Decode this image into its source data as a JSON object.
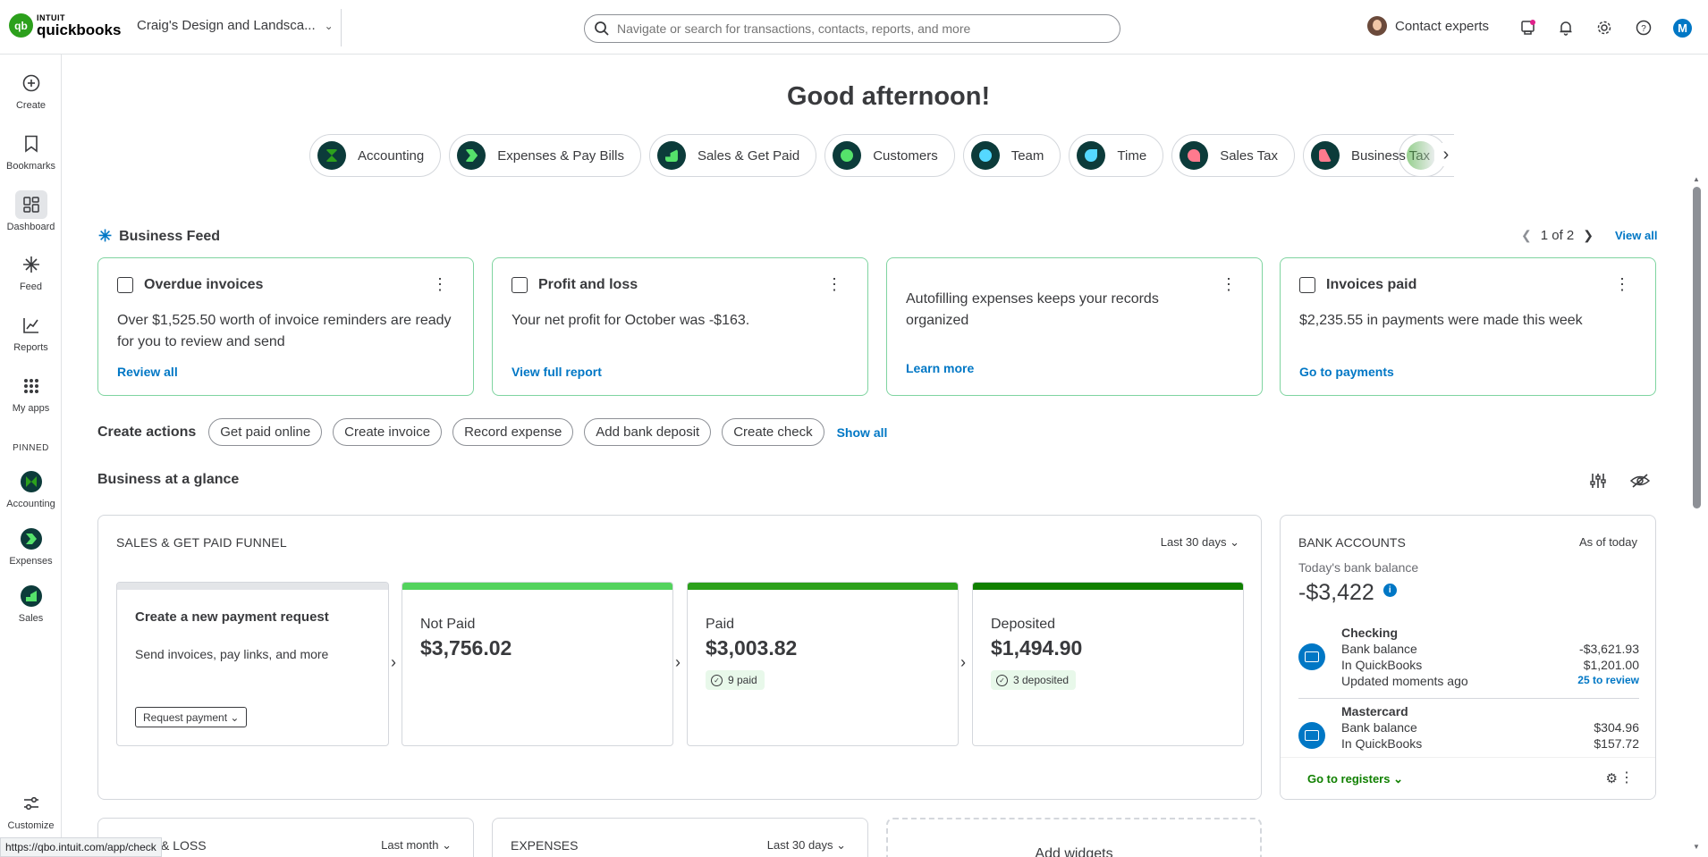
{
  "header": {
    "logo_brand": "INTUIT",
    "logo_product": "quickbooks",
    "company_name": "Craig's Design and Landsca...",
    "search_placeholder": "Navigate or search for transactions, contacts, reports, and more",
    "contact_experts": "Contact experts",
    "avatar_initial": "M"
  },
  "sidebar": {
    "items": [
      {
        "label": "Create",
        "icon": "plus-circle-icon"
      },
      {
        "label": "Bookmarks",
        "icon": "bookmark-icon"
      },
      {
        "label": "Dashboard",
        "icon": "dashboard-icon"
      },
      {
        "label": "Feed",
        "icon": "sparkle-icon"
      },
      {
        "label": "Reports",
        "icon": "line-chart-icon"
      },
      {
        "label": "My apps",
        "icon": "grid-dots-icon"
      }
    ],
    "pinned_label": "PINNED",
    "pinned": [
      {
        "label": "Accounting"
      },
      {
        "label": "Expenses"
      },
      {
        "label": "Sales"
      }
    ],
    "customize_label": "Customize"
  },
  "main": {
    "greeting": "Good afternoon!",
    "chips": [
      {
        "label": "Accounting"
      },
      {
        "label": "Expenses & Pay Bills"
      },
      {
        "label": "Sales & Get Paid"
      },
      {
        "label": "Customers"
      },
      {
        "label": "Team"
      },
      {
        "label": "Time"
      },
      {
        "label": "Sales Tax"
      },
      {
        "label": "Business Tax"
      }
    ],
    "feed": {
      "title": "Business Feed",
      "pager": "1 of 2",
      "view_all": "View all",
      "cards": [
        {
          "title": "Overdue invoices",
          "body": "Over $1,525.50 worth of invoice reminders are ready for you to review and send",
          "link": "Review all"
        },
        {
          "title": "Profit and loss",
          "body": "Your net profit for October was -$163.",
          "link": "View full report"
        },
        {
          "title": "",
          "body": "Autofilling expenses keeps your records organized",
          "link": "Learn more"
        },
        {
          "title": "Invoices paid",
          "body": "$2,235.55 in payments were made this week",
          "link": "Go to payments"
        }
      ]
    },
    "create_actions": {
      "label": "Create actions",
      "buttons": [
        "Get paid online",
        "Create invoice",
        "Record expense",
        "Add bank deposit",
        "Create check"
      ],
      "show_all": "Show all"
    },
    "glance_title": "Business at a glance",
    "funnel": {
      "title": "SALES & GET PAID FUNNEL",
      "range": "Last 30 days",
      "create": {
        "title": "Create a new payment request",
        "subtitle": "Send invoices, pay links, and more",
        "button": "Request payment"
      },
      "stages": [
        {
          "label": "Not Paid",
          "value": "$3,756.02",
          "badge": ""
        },
        {
          "label": "Paid",
          "value": "$3,003.82",
          "badge": "9 paid"
        },
        {
          "label": "Deposited",
          "value": "$1,494.90",
          "badge": "3 deposited"
        }
      ]
    },
    "bank": {
      "title": "BANK ACCOUNTS",
      "as_of": "As of today",
      "today_label": "Today's bank balance",
      "balance": "-$3,422",
      "accounts": [
        {
          "name": "Checking",
          "bank_balance_label": "Bank balance",
          "bank_balance": "-$3,621.93",
          "qb_label": "In QuickBooks",
          "qb_balance": "$1,201.00",
          "updated": "Updated moments ago",
          "review": "25 to review"
        },
        {
          "name": "Mastercard",
          "bank_balance_label": "Bank balance",
          "bank_balance": "$304.96",
          "qb_label": "In QuickBooks",
          "qb_balance": "$157.72"
        }
      ],
      "go_registers": "Go to registers"
    },
    "bottom": {
      "pl_title": "& LOSS",
      "pl_range": "Last month",
      "exp_title": "EXPENSES",
      "exp_range": "Last 30 days",
      "add_widgets": "Add widgets"
    }
  },
  "statusbar": {
    "url": "https://qbo.intuit.com/app/check"
  }
}
